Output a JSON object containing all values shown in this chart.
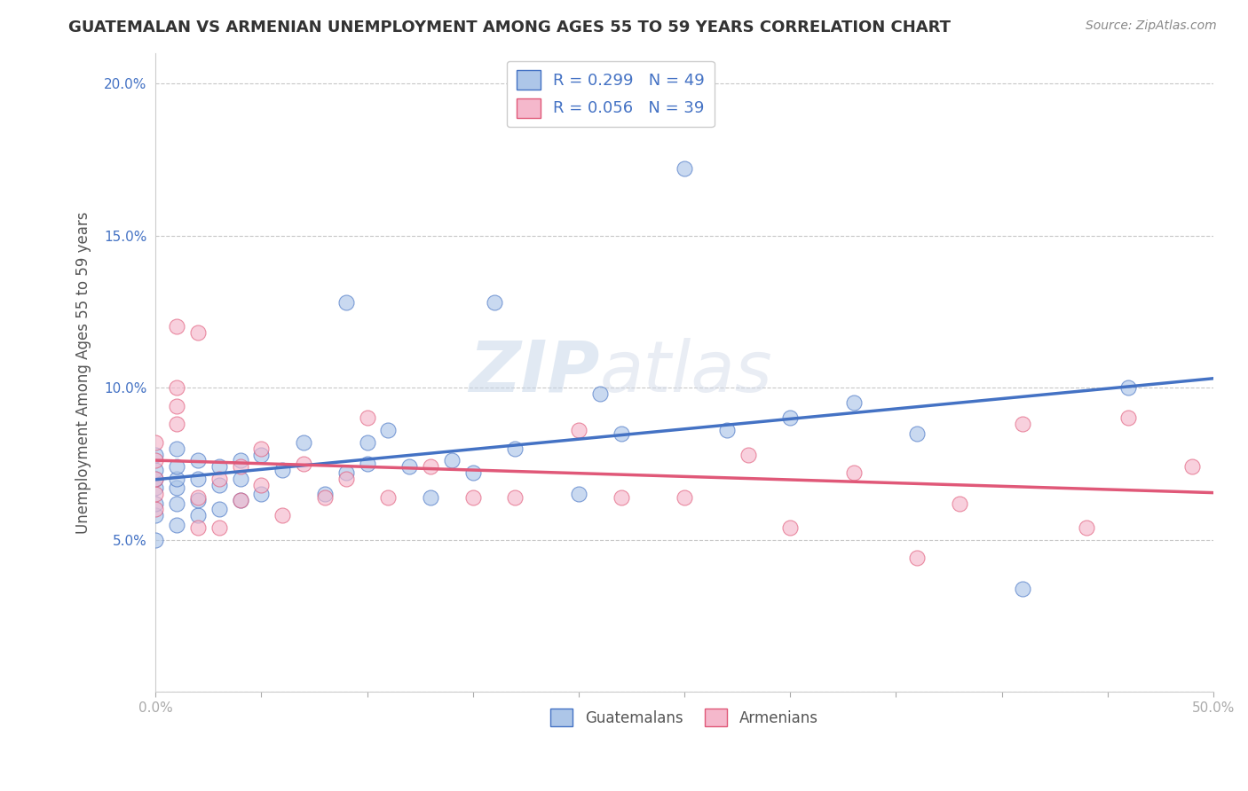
{
  "title": "GUATEMALAN VS ARMENIAN UNEMPLOYMENT AMONG AGES 55 TO 59 YEARS CORRELATION CHART",
  "source": "Source: ZipAtlas.com",
  "ylabel": "Unemployment Among Ages 55 to 59 years",
  "xlabel": "",
  "xlim": [
    0,
    0.5
  ],
  "ylim": [
    0,
    0.21
  ],
  "guatemalan_color": "#adc6e8",
  "armenian_color": "#f5b8cc",
  "guatemalan_line_color": "#4472C4",
  "armenian_line_color": "#e05878",
  "guatemalan_R": 0.299,
  "guatemalan_N": 49,
  "armenian_R": 0.056,
  "armenian_N": 39,
  "background_color": "#ffffff",
  "grid_color": "#c8c8c8",
  "guatemalan_x": [
    0.0,
    0.0,
    0.0,
    0.0,
    0.0,
    0.0,
    0.0,
    0.01,
    0.01,
    0.01,
    0.01,
    0.01,
    0.01,
    0.02,
    0.02,
    0.02,
    0.02,
    0.03,
    0.03,
    0.03,
    0.04,
    0.04,
    0.04,
    0.05,
    0.05,
    0.06,
    0.07,
    0.08,
    0.09,
    0.09,
    0.1,
    0.1,
    0.11,
    0.12,
    0.13,
    0.14,
    0.15,
    0.16,
    0.17,
    0.2,
    0.21,
    0.22,
    0.25,
    0.27,
    0.3,
    0.33,
    0.36,
    0.41,
    0.46
  ],
  "guatemalan_y": [
    0.05,
    0.058,
    0.062,
    0.067,
    0.07,
    0.073,
    0.078,
    0.055,
    0.062,
    0.067,
    0.07,
    0.074,
    0.08,
    0.058,
    0.063,
    0.07,
    0.076,
    0.06,
    0.068,
    0.074,
    0.063,
    0.07,
    0.076,
    0.065,
    0.078,
    0.073,
    0.082,
    0.065,
    0.072,
    0.128,
    0.075,
    0.082,
    0.086,
    0.074,
    0.064,
    0.076,
    0.072,
    0.128,
    0.08,
    0.065,
    0.098,
    0.085,
    0.172,
    0.086,
    0.09,
    0.095,
    0.085,
    0.034,
    0.1
  ],
  "armenian_x": [
    0.0,
    0.0,
    0.0,
    0.0,
    0.0,
    0.01,
    0.01,
    0.01,
    0.01,
    0.02,
    0.02,
    0.02,
    0.03,
    0.03,
    0.04,
    0.04,
    0.05,
    0.05,
    0.06,
    0.07,
    0.08,
    0.09,
    0.1,
    0.11,
    0.13,
    0.15,
    0.17,
    0.2,
    0.22,
    0.25,
    0.28,
    0.3,
    0.33,
    0.36,
    0.38,
    0.41,
    0.44,
    0.46,
    0.49
  ],
  "armenian_y": [
    0.06,
    0.065,
    0.07,
    0.076,
    0.082,
    0.088,
    0.094,
    0.1,
    0.12,
    0.054,
    0.064,
    0.118,
    0.054,
    0.07,
    0.063,
    0.074,
    0.068,
    0.08,
    0.058,
    0.075,
    0.064,
    0.07,
    0.09,
    0.064,
    0.074,
    0.064,
    0.064,
    0.086,
    0.064,
    0.064,
    0.078,
    0.054,
    0.072,
    0.044,
    0.062,
    0.088,
    0.054,
    0.09,
    0.074
  ]
}
